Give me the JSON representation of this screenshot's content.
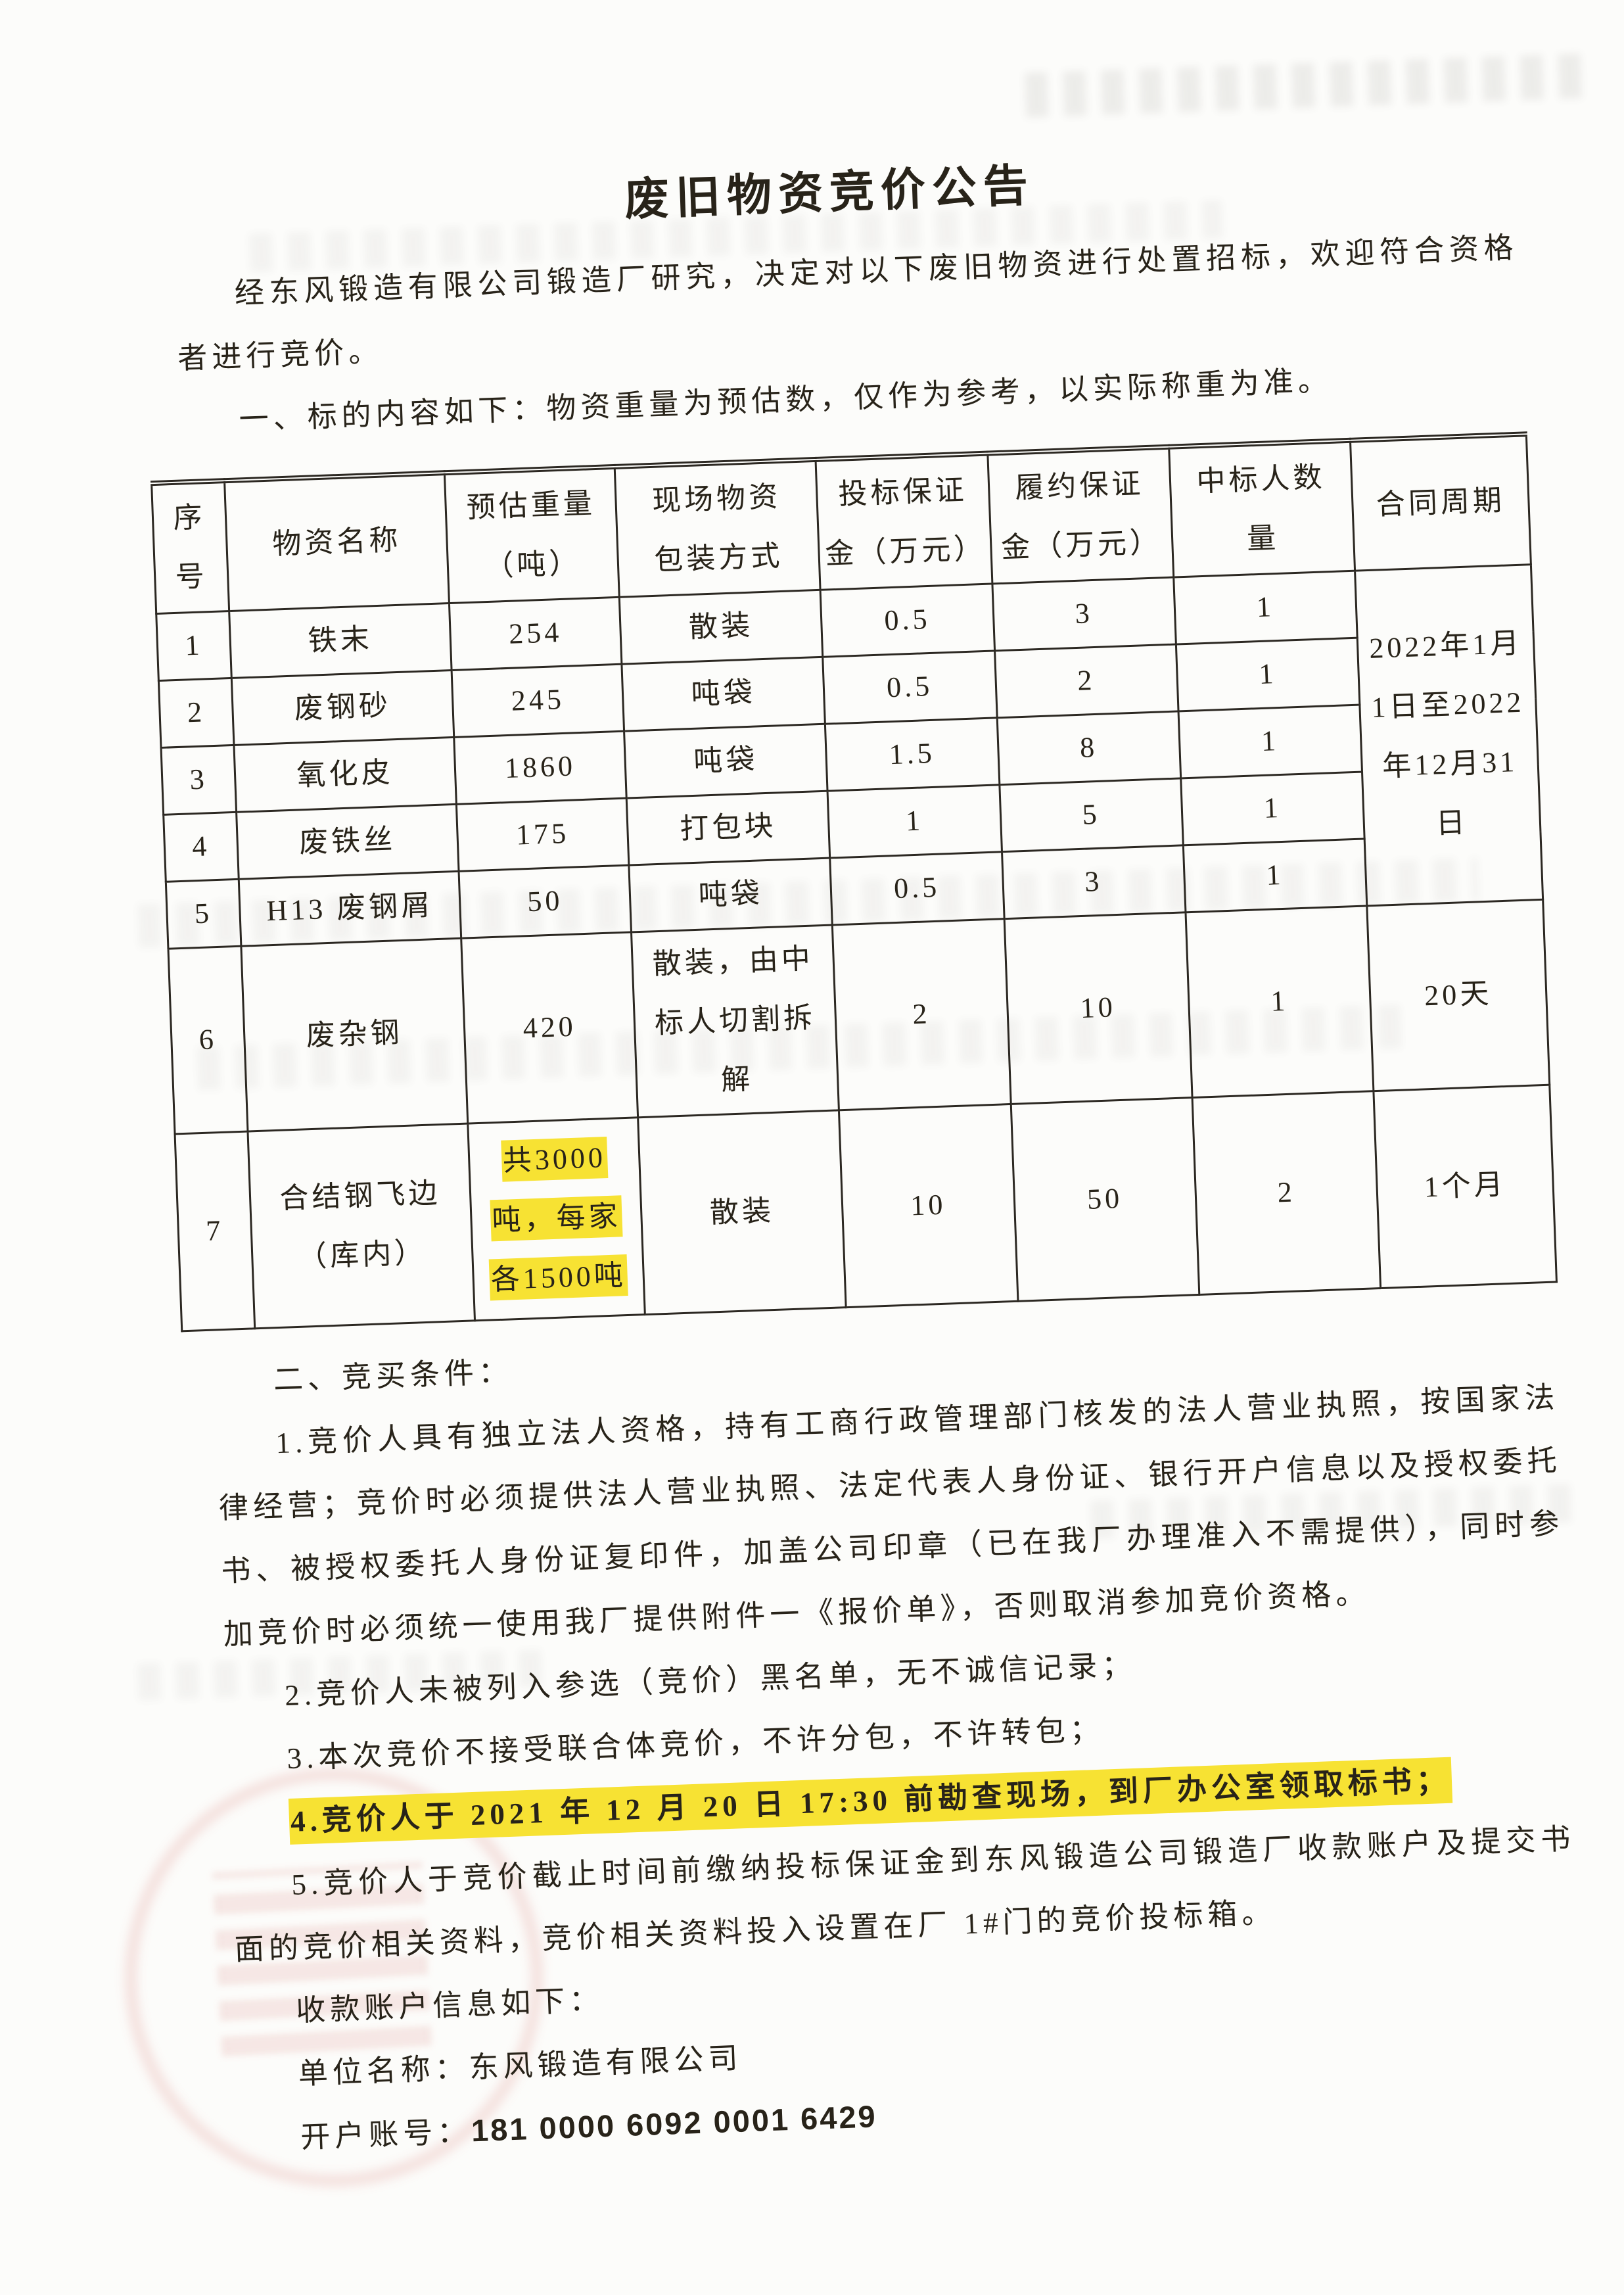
{
  "colors": {
    "highlight_yellow": "#f7e233",
    "ink": "#282319",
    "table_border": "#2c2822",
    "stamp_red": "#c43c34",
    "paper": "#fcfcfa"
  },
  "document": {
    "title": "废旧物资竞价公告",
    "intro": "经东风锻造有限公司锻造厂研究，决定对以下废旧物资进行处置招标，欢迎符合资格者进行竞价。",
    "section1_heading": "一、标的内容如下：物资重量为预估数，仅作为参考，以实际称重为准。",
    "table": {
      "headers": [
        "序\n号",
        "物资名称",
        "预估重量\n（吨）",
        "现场物资\n包装方式",
        "投标保证\n金（万元）",
        "履约保证\n金（万元）",
        "中标人数\n量",
        "合同周期"
      ],
      "rows": [
        {
          "no": "1",
          "name": "铁末",
          "weight": "254",
          "packing": "散装",
          "bid_deposit": "0.5",
          "perf_deposit": "3",
          "winners": "1"
        },
        {
          "no": "2",
          "name": "废钢砂",
          "weight": "245",
          "packing": "吨袋",
          "bid_deposit": "0.5",
          "perf_deposit": "2",
          "winners": "1"
        },
        {
          "no": "3",
          "name": "氧化皮",
          "weight": "1860",
          "packing": "吨袋",
          "bid_deposit": "1.5",
          "perf_deposit": "8",
          "winners": "1"
        },
        {
          "no": "4",
          "name": "废铁丝",
          "weight": "175",
          "packing": "打包块",
          "bid_deposit": "1",
          "perf_deposit": "5",
          "winners": "1"
        },
        {
          "no": "5",
          "name": "H13 废钢屑",
          "weight": "50",
          "packing": "吨袋",
          "bid_deposit": "0.5",
          "perf_deposit": "3",
          "winners": "1"
        },
        {
          "no": "6",
          "name": "废杂钢",
          "weight": "420",
          "packing": "散装，由中标人切割拆解",
          "bid_deposit": "2",
          "perf_deposit": "10",
          "winners": "1",
          "period": "20天"
        },
        {
          "no": "7",
          "name": "合结钢飞边（库内）",
          "weight": "共3000吨，每家各1500吨",
          "weight_highlighted": true,
          "packing": "散装",
          "bid_deposit": "10",
          "perf_deposit": "50",
          "winners": "2",
          "period": "1个月"
        }
      ],
      "merged_period_rows_1_to_5": "2022年1月1日至2022年12月31日"
    },
    "section2_heading": "二、竞买条件：",
    "conditions": [
      {
        "label": "1.",
        "text": "竞价人具有独立法人资格，持有工商行政管理部门核发的法人营业执照，按国家法律经营；竞价时必须提供法人营业执照、法定代表人身份证、银行开户信息以及授权委托书、被授权委托人身份证复印件，加盖公司印章（已在我厂办理准入不需提供），同时参加竞价时必须统一使用我厂提供附件一《报价单》，否则取消参加竞价资格。",
        "highlighted": false
      },
      {
        "label": "2.",
        "text": "竞价人未被列入参选（竞价）黑名单，无不诚信记录；",
        "highlighted": false
      },
      {
        "label": "3.",
        "text": "本次竞价不接受联合体竞价，不许分包，不许转包；",
        "highlighted": false
      },
      {
        "label": "4.",
        "text": "竞价人于 2021 年 12 月 20 日 17:30 前勘查现场，到厂办公室领取标书；",
        "highlighted": true
      },
      {
        "label": "5.",
        "text": "竞价人于竞价截止时间前缴纳投标保证金到东风锻造公司锻造厂收款账户及提交书面的竞价相关资料，竞价相关资料投入设置在厂 1#门的竞价投标箱。",
        "highlighted": false
      }
    ],
    "account": {
      "intro": "收款账户信息如下：",
      "name_label": "单位名称：",
      "name_value": "东风锻造有限公司",
      "number_label": "开户账号：",
      "number_value": "181 0000 6092 0001 6429"
    }
  }
}
